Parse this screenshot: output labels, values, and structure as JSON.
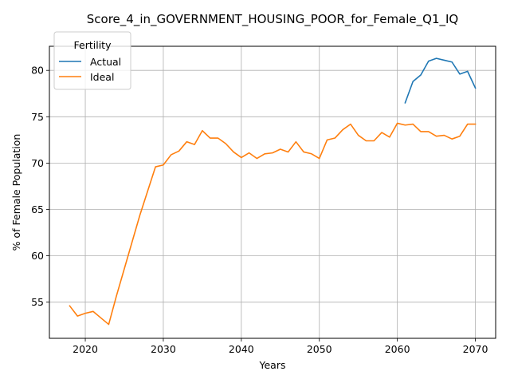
{
  "chart_data": {
    "type": "line",
    "title": "Score_4_in_GOVERNMENT_HOUSING_POOR_for_Female_Q1_IQ",
    "xlabel": "Years",
    "ylabel": "% of Female Population",
    "xlim": [
      2015.4,
      2072.6
    ],
    "ylim": [
      51.1,
      82.6
    ],
    "xticks": [
      2020,
      2030,
      2040,
      2050,
      2060,
      2070
    ],
    "yticks": [
      55,
      60,
      65,
      70,
      75,
      80
    ],
    "grid": true,
    "legend": {
      "title": "Fertility",
      "placement": "top-left"
    },
    "series": [
      {
        "name": "Actual",
        "color": "#1f77b4",
        "x": [
          2061,
          2062,
          2063,
          2064,
          2065,
          2066,
          2067,
          2068,
          2069,
          2070
        ],
        "values": [
          76.5,
          78.8,
          79.5,
          81.0,
          81.3,
          81.1,
          80.9,
          79.6,
          79.9,
          78.1
        ]
      },
      {
        "name": "Ideal",
        "color": "#ff7f0e",
        "x": [
          2018,
          2019,
          2020,
          2021,
          2022,
          2023,
          2024,
          2025,
          2026,
          2027,
          2028,
          2029,
          2030,
          2031,
          2032,
          2033,
          2034,
          2035,
          2036,
          2037,
          2038,
          2039,
          2040,
          2041,
          2042,
          2043,
          2044,
          2045,
          2046,
          2047,
          2048,
          2049,
          2050,
          2051,
          2052,
          2053,
          2054,
          2055,
          2056,
          2057,
          2058,
          2059,
          2060,
          2061,
          2062,
          2063,
          2064,
          2065,
          2066,
          2067,
          2068,
          2069,
          2070
        ],
        "values": [
          54.6,
          53.5,
          53.8,
          54.0,
          53.3,
          52.6,
          55.7,
          58.6,
          61.5,
          64.4,
          67.0,
          69.6,
          69.8,
          70.9,
          71.3,
          72.3,
          72.0,
          73.5,
          72.7,
          72.7,
          72.1,
          71.2,
          70.6,
          71.1,
          70.5,
          71.0,
          71.1,
          71.5,
          71.2,
          72.3,
          71.2,
          71.0,
          70.5,
          72.5,
          72.7,
          73.6,
          74.2,
          73.0,
          72.4,
          72.4,
          73.3,
          72.8,
          74.3,
          74.1,
          74.2,
          73.4,
          73.4,
          72.9,
          73.0,
          72.6,
          72.9,
          74.2,
          74.2
        ]
      }
    ]
  }
}
